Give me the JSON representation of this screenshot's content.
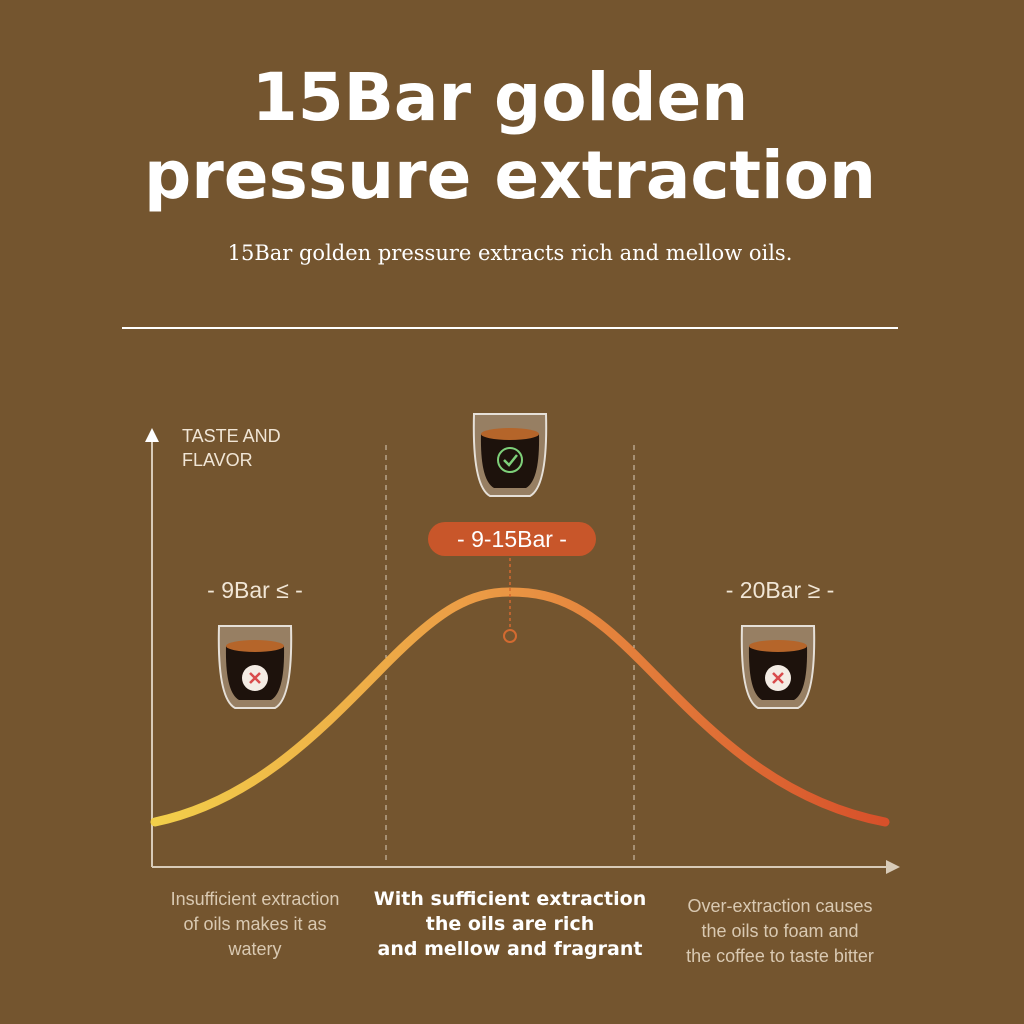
{
  "header": {
    "title_lines": [
      "15Bar golden",
      "pressure extraction"
    ],
    "subtitle": "15Bar golden pressure extracts rich and mellow oils."
  },
  "diagram": {
    "axis_label_lines": [
      "TASTE AND",
      "FLAVOR"
    ],
    "zones": [
      {
        "label": "- 9Bar ≤ -",
        "description_lines": [
          "Insufficient extraction",
          "of oils makes it as",
          "watery"
        ]
      },
      {
        "label": "- 9-15Bar -",
        "description_lines": [
          "With sufficient extraction",
          "the oils are rich",
          "and mellow and fragrant"
        ]
      },
      {
        "label": "- 20Bar ≥ -",
        "description_lines": [
          "Over-extraction causes",
          "the oils to foam and",
          "the coffee to taste bitter"
        ]
      }
    ]
  }
}
